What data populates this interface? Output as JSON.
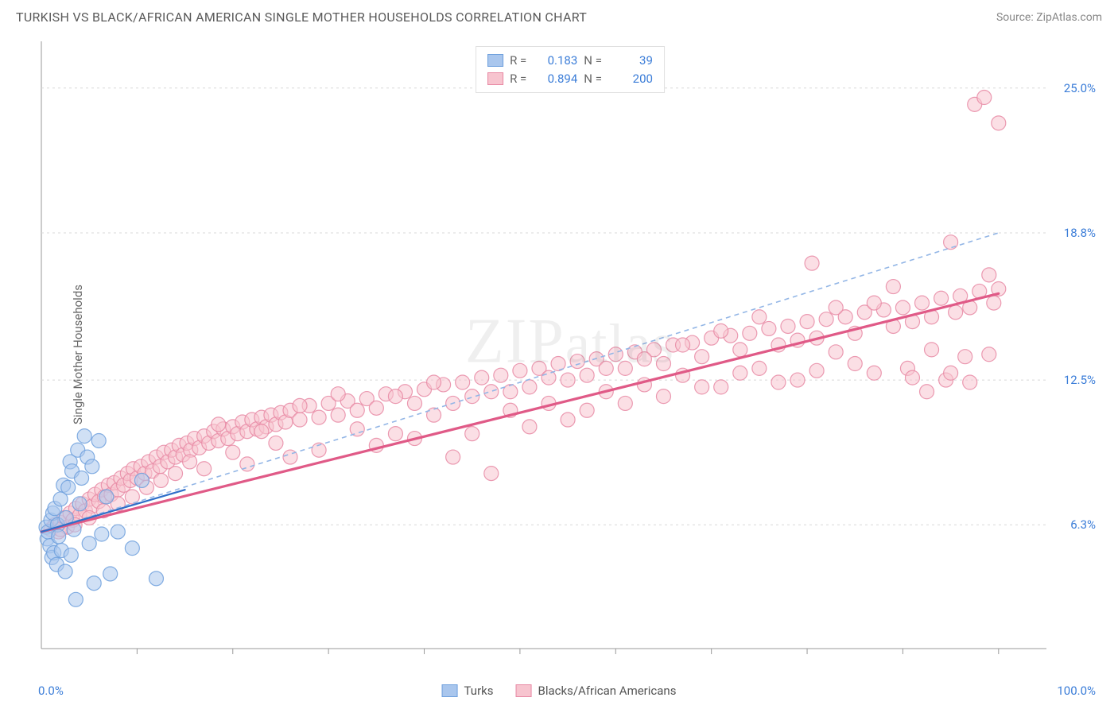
{
  "header": {
    "title": "TURKISH VS BLACK/AFRICAN AMERICAN SINGLE MOTHER HOUSEHOLDS CORRELATION CHART",
    "source": "Source: ZipAtlas.com"
  },
  "axes": {
    "y_label": "Single Mother Households",
    "x_min_label": "0.0%",
    "x_max_label": "100.0%",
    "y_ticks": [
      {
        "value": 6.3,
        "label": "6.3%"
      },
      {
        "value": 12.5,
        "label": "12.5%"
      },
      {
        "value": 18.8,
        "label": "18.8%"
      },
      {
        "value": 25.0,
        "label": "25.0%"
      }
    ],
    "x_ticks_pct": [
      10,
      20,
      30,
      40,
      50,
      60,
      70,
      80,
      90,
      100
    ],
    "x_domain": [
      0,
      105
    ],
    "y_domain": [
      1.0,
      27.0
    ]
  },
  "watermark": "ZIPatlas",
  "legend": {
    "series1": {
      "label": "Turks",
      "fill": "#a9c6ed",
      "stroke": "#6fa0dd"
    },
    "series2": {
      "label": "Blacks/African Americans",
      "fill": "#f7c4cf",
      "stroke": "#e889a4"
    }
  },
  "stats": {
    "s1": {
      "R_label": "R =",
      "R": "0.183",
      "N_label": "N =",
      "N": "39"
    },
    "s2": {
      "R_label": "R =",
      "R": "0.894",
      "N_label": "N =",
      "N": "200"
    }
  },
  "style": {
    "bg": "#ffffff",
    "grid_color": "#d8d8d8",
    "axis_color": "#999999",
    "title_color": "#5a5a5a",
    "source_color": "#888888",
    "tick_label_color": "#3b7dd8",
    "dash_line_color": "#93b6e6",
    "s1_line_color": "#2f6fc9",
    "s2_line_color": "#e05a87",
    "point_radius": 9,
    "point_opacity": 0.55,
    "line_width_s1": 2.2,
    "line_width_s2": 3.2,
    "dash_pattern": "6 5",
    "title_fontsize": 16,
    "label_fontsize": 15
  },
  "trend_lines": {
    "s1": {
      "x1": 0,
      "y1": 6.0,
      "x2": 15,
      "y2": 7.8
    },
    "s2": {
      "x1": 0,
      "y1": 6.0,
      "x2": 100,
      "y2": 16.2
    },
    "dash": {
      "x1": 0,
      "y1": 6.0,
      "x2": 100,
      "y2": 18.8
    }
  },
  "series1_points": [
    [
      0.5,
      6.2
    ],
    [
      0.6,
      5.7
    ],
    [
      0.7,
      6.0
    ],
    [
      0.9,
      5.4
    ],
    [
      1.0,
      6.5
    ],
    [
      1.1,
      4.9
    ],
    [
      1.2,
      6.8
    ],
    [
      1.3,
      5.1
    ],
    [
      1.4,
      7.0
    ],
    [
      1.6,
      4.6
    ],
    [
      1.7,
      6.3
    ],
    [
      1.8,
      5.8
    ],
    [
      2.0,
      7.4
    ],
    [
      2.1,
      5.2
    ],
    [
      2.3,
      8.0
    ],
    [
      2.5,
      4.3
    ],
    [
      2.6,
      6.6
    ],
    [
      2.8,
      7.9
    ],
    [
      3.0,
      9.0
    ],
    [
      3.1,
      5.0
    ],
    [
      3.2,
      8.6
    ],
    [
      3.4,
      6.1
    ],
    [
      3.6,
      3.1
    ],
    [
      3.8,
      9.5
    ],
    [
      4.0,
      7.2
    ],
    [
      4.2,
      8.3
    ],
    [
      4.5,
      10.1
    ],
    [
      4.8,
      9.2
    ],
    [
      5.0,
      5.5
    ],
    [
      5.3,
      8.8
    ],
    [
      5.5,
      3.8
    ],
    [
      6.0,
      9.9
    ],
    [
      6.3,
      5.9
    ],
    [
      6.8,
      7.5
    ],
    [
      7.2,
      4.2
    ],
    [
      8.0,
      6.0
    ],
    [
      9.5,
      5.3
    ],
    [
      10.5,
      8.2
    ],
    [
      12.0,
      4.0
    ]
  ],
  "series2_points": [
    [
      1,
      6.1
    ],
    [
      1.4,
      6.3
    ],
    [
      1.8,
      6.0
    ],
    [
      2,
      6.4
    ],
    [
      2.4,
      6.6
    ],
    [
      2.7,
      6.2
    ],
    [
      3,
      6.8
    ],
    [
      3.3,
      6.5
    ],
    [
      3.6,
      7.0
    ],
    [
      4,
      6.7
    ],
    [
      4.3,
      7.2
    ],
    [
      4.6,
      6.9
    ],
    [
      5,
      7.4
    ],
    [
      5.3,
      7.1
    ],
    [
      5.6,
      7.6
    ],
    [
      6,
      7.3
    ],
    [
      6.3,
      7.8
    ],
    [
      6.6,
      7.5
    ],
    [
      7,
      8.0
    ],
    [
      7.3,
      7.6
    ],
    [
      7.6,
      8.1
    ],
    [
      8,
      7.8
    ],
    [
      8.3,
      8.3
    ],
    [
      8.6,
      8.0
    ],
    [
      9,
      8.5
    ],
    [
      9.3,
      8.2
    ],
    [
      9.6,
      8.7
    ],
    [
      10,
      8.3
    ],
    [
      10.4,
      8.8
    ],
    [
      10.8,
      8.5
    ],
    [
      11.2,
      9.0
    ],
    [
      11.6,
      8.6
    ],
    [
      12,
      9.2
    ],
    [
      12.4,
      8.8
    ],
    [
      12.8,
      9.4
    ],
    [
      13.2,
      9.0
    ],
    [
      13.6,
      9.5
    ],
    [
      14,
      9.2
    ],
    [
      14.4,
      9.7
    ],
    [
      14.8,
      9.3
    ],
    [
      15.2,
      9.8
    ],
    [
      15.6,
      9.5
    ],
    [
      16,
      10.0
    ],
    [
      16.5,
      9.6
    ],
    [
      17,
      10.1
    ],
    [
      17.5,
      9.8
    ],
    [
      18,
      10.3
    ],
    [
      18.5,
      9.9
    ],
    [
      19,
      10.4
    ],
    [
      19.5,
      10.0
    ],
    [
      20,
      10.5
    ],
    [
      20.5,
      10.2
    ],
    [
      21,
      10.7
    ],
    [
      21.5,
      10.3
    ],
    [
      22,
      10.8
    ],
    [
      22.5,
      10.4
    ],
    [
      23,
      10.9
    ],
    [
      23.5,
      10.5
    ],
    [
      24,
      11.0
    ],
    [
      24.5,
      10.6
    ],
    [
      25,
      11.1
    ],
    [
      25.5,
      10.7
    ],
    [
      26,
      11.2
    ],
    [
      27,
      10.8
    ],
    [
      28,
      11.4
    ],
    [
      29,
      10.9
    ],
    [
      30,
      11.5
    ],
    [
      31,
      11.0
    ],
    [
      32,
      11.6
    ],
    [
      33,
      11.2
    ],
    [
      34,
      11.7
    ],
    [
      35,
      11.3
    ],
    [
      36,
      11.9
    ],
    [
      37,
      10.2
    ],
    [
      38,
      12.0
    ],
    [
      39,
      11.5
    ],
    [
      40,
      12.1
    ],
    [
      41,
      11.0
    ],
    [
      42,
      12.3
    ],
    [
      43,
      9.2
    ],
    [
      44,
      12.4
    ],
    [
      45,
      11.8
    ],
    [
      46,
      12.6
    ],
    [
      47,
      8.5
    ],
    [
      48,
      12.7
    ],
    [
      49,
      12.0
    ],
    [
      50,
      12.9
    ],
    [
      51,
      12.2
    ],
    [
      52,
      13.0
    ],
    [
      53,
      11.5
    ],
    [
      54,
      13.2
    ],
    [
      55,
      12.5
    ],
    [
      56,
      13.3
    ],
    [
      57,
      12.7
    ],
    [
      58,
      13.4
    ],
    [
      59,
      12.0
    ],
    [
      60,
      13.6
    ],
    [
      61,
      13.0
    ],
    [
      62,
      13.7
    ],
    [
      63,
      12.3
    ],
    [
      64,
      13.8
    ],
    [
      65,
      13.2
    ],
    [
      66,
      14.0
    ],
    [
      67,
      12.7
    ],
    [
      68,
      14.1
    ],
    [
      69,
      13.5
    ],
    [
      70,
      14.3
    ],
    [
      71,
      12.2
    ],
    [
      72,
      14.4
    ],
    [
      73,
      13.8
    ],
    [
      74,
      14.5
    ],
    [
      75,
      13.0
    ],
    [
      76,
      14.7
    ],
    [
      77,
      14.0
    ],
    [
      78,
      14.8
    ],
    [
      79,
      12.5
    ],
    [
      80,
      15.0
    ],
    [
      80.5,
      17.5
    ],
    [
      81,
      14.3
    ],
    [
      82,
      15.1
    ],
    [
      83,
      13.7
    ],
    [
      84,
      15.2
    ],
    [
      85,
      14.5
    ],
    [
      86,
      15.4
    ],
    [
      87,
      12.8
    ],
    [
      88,
      15.5
    ],
    [
      89,
      14.8
    ],
    [
      90,
      15.6
    ],
    [
      90.5,
      13.0
    ],
    [
      91,
      15.0
    ],
    [
      92,
      15.8
    ],
    [
      92.5,
      12.0
    ],
    [
      93,
      15.2
    ],
    [
      94,
      16.0
    ],
    [
      94.5,
      12.5
    ],
    [
      95,
      18.4
    ],
    [
      95.5,
      15.4
    ],
    [
      96,
      16.1
    ],
    [
      96.5,
      13.5
    ],
    [
      97,
      15.6
    ],
    [
      97.5,
      24.3
    ],
    [
      98,
      16.3
    ],
    [
      98.5,
      24.6
    ],
    [
      99,
      17.0
    ],
    [
      99.5,
      15.8
    ],
    [
      100,
      16.4
    ],
    [
      100,
      23.5
    ],
    [
      99,
      13.6
    ],
    [
      97,
      12.4
    ],
    [
      95,
      12.8
    ],
    [
      93,
      13.8
    ],
    [
      91,
      12.6
    ],
    [
      89,
      16.5
    ],
    [
      87,
      15.8
    ],
    [
      85,
      13.2
    ],
    [
      83,
      15.6
    ],
    [
      81,
      12.9
    ],
    [
      79,
      14.2
    ],
    [
      77,
      12.4
    ],
    [
      75,
      15.2
    ],
    [
      73,
      12.8
    ],
    [
      71,
      14.6
    ],
    [
      69,
      12.2
    ],
    [
      67,
      14.0
    ],
    [
      65,
      11.8
    ],
    [
      63,
      13.4
    ],
    [
      61,
      11.5
    ],
    [
      59,
      13.0
    ],
    [
      57,
      11.2
    ],
    [
      55,
      10.8
    ],
    [
      53,
      12.6
    ],
    [
      51,
      10.5
    ],
    [
      49,
      11.2
    ],
    [
      47,
      12.0
    ],
    [
      45,
      10.2
    ],
    [
      43,
      11.5
    ],
    [
      41,
      12.4
    ],
    [
      39,
      10.0
    ],
    [
      37,
      11.8
    ],
    [
      35,
      9.7
    ],
    [
      33,
      10.4
    ],
    [
      31,
      11.9
    ],
    [
      29,
      9.5
    ],
    [
      27,
      11.4
    ],
    [
      26,
      9.2
    ],
    [
      24.5,
      9.8
    ],
    [
      23,
      10.3
    ],
    [
      21.5,
      8.9
    ],
    [
      20,
      9.4
    ],
    [
      18.5,
      10.6
    ],
    [
      17,
      8.7
    ],
    [
      15.5,
      9.0
    ],
    [
      14,
      8.5
    ],
    [
      12.5,
      8.2
    ],
    [
      11,
      7.9
    ],
    [
      9.5,
      7.5
    ],
    [
      8,
      7.2
    ],
    [
      6.5,
      6.9
    ],
    [
      5,
      6.6
    ],
    [
      3.5,
      6.3
    ],
    [
      2,
      6.1
    ]
  ]
}
